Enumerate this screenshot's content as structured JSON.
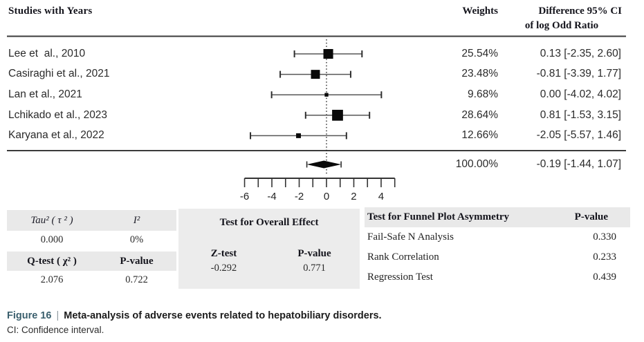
{
  "header": {
    "studies_label": "Studies with Years",
    "weights_label": "Weights",
    "effect_label_line1": "Difference 95% CI",
    "effect_label_line2": "of log Odd Ratio"
  },
  "chart_data": {
    "type": "forest",
    "effect_measure": "Difference of log Odd Ratio",
    "axis": {
      "tick_min": -6,
      "tick_max": 5,
      "labels": [
        "-6",
        "-4",
        "-2",
        "0",
        "2",
        "4"
      ],
      "zero_line": 0
    },
    "studies": [
      {
        "name": "Lee et  al., 2010",
        "weight_pct": 25.54,
        "weight_label": "25.54%",
        "effect": 0.13,
        "ci_low": -2.35,
        "ci_high": 2.6,
        "ci_label": "0.13 [-2.35, 2.60]"
      },
      {
        "name": "Casiraghi et al., 2021",
        "weight_pct": 23.48,
        "weight_label": "23.48%",
        "effect": -0.81,
        "ci_low": -3.39,
        "ci_high": 1.77,
        "ci_label": "-0.81 [-3.39, 1.77]"
      },
      {
        "name": "Lan et al., 2021",
        "weight_pct": 9.68,
        "weight_label": "9.68%",
        "effect": 0.0,
        "ci_low": -4.02,
        "ci_high": 4.02,
        "ci_label": "0.00 [-4.02, 4.02]"
      },
      {
        "name": "Lchikado et al., 2023",
        "weight_pct": 28.64,
        "weight_label": "28.64%",
        "effect": 0.81,
        "ci_low": -1.53,
        "ci_high": 3.15,
        "ci_label": "0.81 [-1.53, 3.15]"
      },
      {
        "name": "Karyana et al., 2022",
        "weight_pct": 12.66,
        "weight_label": "12.66%",
        "effect": -2.05,
        "ci_low": -5.57,
        "ci_high": 1.46,
        "ci_label": "-2.05 [-5.57, 1.46]"
      }
    ],
    "summary": {
      "weight_label": "100.00%",
      "effect": -0.19,
      "ci_low": -1.44,
      "ci_high": 1.07,
      "ci_label": "-0.19 [-1.44, 1.07]"
    }
  },
  "left_table": {
    "row1": {
      "c1": "Tau² ( τ ² )",
      "c2": "I²"
    },
    "row2": {
      "c1": "0.000",
      "c2": "0%"
    },
    "row3": {
      "c1": "Q-test ( χ² )",
      "c2": "P-value"
    },
    "row4": {
      "c1": "2.076",
      "c2": "0.722"
    }
  },
  "overall_effect": {
    "title": "Test for Overall Effect",
    "col1_header": "Z-test",
    "col2_header": "P-value",
    "col1_value": "-0.292",
    "col2_value": "0.771"
  },
  "funnel_table": {
    "header_label": "Test for Funnel Plot Asymmetry",
    "header_value": "P-value",
    "rows": [
      {
        "label": "Fail-Safe N Analysis",
        "value": "0.330"
      },
      {
        "label": "Rank Correlation",
        "value": "0.233"
      },
      {
        "label": "Regression Test",
        "value": "0.439"
      }
    ]
  },
  "caption": {
    "figure_label": "Figure 16",
    "separator": "|",
    "title": "Meta-analysis of adverse events related to hepatobiliary disorders.",
    "note": "CI: Confidence interval."
  },
  "colors": {
    "caption_accent": "#3a5f6d",
    "table_header_bg": "#e9e9e9",
    "marker": "#0a0a0a",
    "rule": "#3a3a3a"
  }
}
